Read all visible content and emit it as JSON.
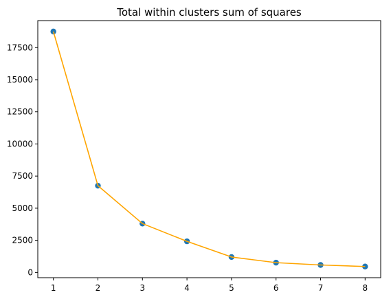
{
  "chart_data": {
    "type": "scatter",
    "title": "Total within clusters sum of squares",
    "xlabel": "",
    "ylabel": "",
    "x": [
      1,
      2,
      3,
      4,
      5,
      6,
      7,
      8
    ],
    "y": [
      18750,
      6750,
      3800,
      2420,
      1200,
      760,
      580,
      460
    ],
    "xlim": [
      0.65,
      8.35
    ],
    "ylim": [
      -410,
      19600
    ],
    "x_ticks": [
      1,
      2,
      3,
      4,
      5,
      6,
      7,
      8
    ],
    "x_tick_labels": [
      "1",
      "2",
      "3",
      "4",
      "5",
      "6",
      "7",
      "8"
    ],
    "y_ticks": [
      0,
      2500,
      5000,
      7500,
      10000,
      12500,
      15000,
      17500
    ],
    "y_tick_labels": [
      "0",
      "2500",
      "5000",
      "7500",
      "10000",
      "12500",
      "15000",
      "17500"
    ],
    "grid": false,
    "marker_color": "#1f77b4",
    "line_color": "#ffa500"
  }
}
